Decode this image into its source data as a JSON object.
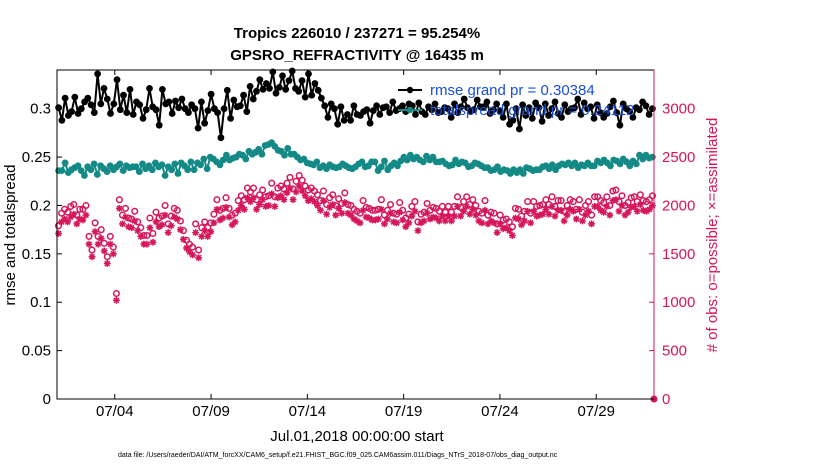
{
  "chart_data": {
    "type": "line",
    "title": "Tropics 226010 / 237271 = 95.254%",
    "subtitle": "GPSRO_REFRACTIVITY @ 16435 m",
    "xlabel": "Jul.01,2018 00:00:00 start",
    "ylabel_left": "rmse and totalspread",
    "ylabel_right": "# of obs: o=possible; ×=assimilated",
    "x_tick_labels": [
      "07/04",
      "07/09",
      "07/14",
      "07/19",
      "07/24",
      "07/29"
    ],
    "x_tick_days": [
      4,
      9,
      14,
      19,
      24,
      29
    ],
    "xlim": [
      1,
      32
    ],
    "ylim_left": [
      0,
      0.34
    ],
    "ylim_right": [
      0,
      3400
    ],
    "y_ticks_left": [
      "0",
      "0.05",
      "0.1",
      "0.15",
      "0.2",
      "0.25",
      "0.3"
    ],
    "y_ticks_right": [
      "0",
      "500",
      "1000",
      "1500",
      "2000",
      "2500",
      "3000"
    ],
    "legend": [
      "rmse grand pr = 0.30384",
      "totalspread grand pr = 0.24112"
    ],
    "colors": {
      "rmse": "#000000",
      "spread": "#138a86",
      "obs": "#d6165a",
      "legend_text": "#1a4fd6"
    },
    "series": [
      {
        "name": "rmse",
        "axis": "left",
        "marker": "dot",
        "values": [
          0.301,
          0.288,
          0.311,
          0.293,
          0.297,
          0.312,
          0.295,
          0.3,
          0.307,
          0.311,
          0.304,
          0.296,
          0.336,
          0.305,
          0.321,
          0.31,
          0.295,
          0.305,
          0.33,
          0.299,
          0.314,
          0.296,
          0.32,
          0.294,
          0.307,
          0.304,
          0.29,
          0.299,
          0.321,
          0.302,
          0.299,
          0.283,
          0.32,
          0.305,
          0.307,
          0.295,
          0.308,
          0.301,
          0.31,
          0.3,
          0.296,
          0.304,
          0.3,
          0.28,
          0.307,
          0.285,
          0.298,
          0.315,
          0.3,
          0.296,
          0.27,
          0.3,
          0.319,
          0.29,
          0.309,
          0.302,
          0.303,
          0.314,
          0.297,
          0.323,
          0.31,
          0.318,
          0.33,
          0.32,
          0.326,
          0.321,
          0.338,
          0.316,
          0.322,
          0.334,
          0.32,
          0.329,
          0.339,
          0.321,
          0.318,
          0.329,
          0.312,
          0.336,
          0.314,
          0.326,
          0.319,
          0.311,
          0.303,
          0.291,
          0.305,
          0.3,
          0.284,
          0.302,
          0.288,
          0.294,
          0.288,
          0.303,
          0.294,
          0.293,
          0.297,
          0.299,
          0.285,
          0.298,
          0.303,
          0.294,
          0.301,
          0.302,
          0.296,
          0.307,
          0.298,
          0.3,
          0.303,
          0.297,
          0.305,
          0.303,
          0.294,
          0.306,
          0.297,
          0.294,
          0.302,
          0.299,
          0.305,
          0.296,
          0.297,
          0.301,
          0.3,
          0.291,
          0.305,
          0.296,
          0.302,
          0.31,
          0.301,
          0.297,
          0.299,
          0.309,
          0.302,
          0.302,
          0.307,
          0.295,
          0.299,
          0.305,
          0.298,
          0.291,
          0.305,
          0.284,
          0.288,
          0.3,
          0.279,
          0.304,
          0.293,
          0.301,
          0.29,
          0.306,
          0.301,
          0.287,
          0.305,
          0.293,
          0.3,
          0.307,
          0.295,
          0.291,
          0.304,
          0.297,
          0.3,
          0.301,
          0.31,
          0.294,
          0.306,
          0.3,
          0.302,
          0.29,
          0.304,
          0.296,
          0.291,
          0.295,
          0.302,
          0.308,
          0.296,
          0.283,
          0.305,
          0.3,
          0.297,
          0.291,
          0.301,
          0.299,
          0.307,
          0.303,
          0.294,
          0.3
        ]
      },
      {
        "name": "totalspread",
        "axis": "left",
        "marker": "dot",
        "values": [
          0.236,
          0.236,
          0.244,
          0.234,
          0.237,
          0.239,
          0.241,
          0.236,
          0.231,
          0.24,
          0.237,
          0.243,
          0.232,
          0.241,
          0.238,
          0.235,
          0.241,
          0.237,
          0.24,
          0.243,
          0.236,
          0.241,
          0.239,
          0.24,
          0.24,
          0.235,
          0.243,
          0.238,
          0.241,
          0.237,
          0.244,
          0.24,
          0.242,
          0.231,
          0.24,
          0.237,
          0.243,
          0.233,
          0.244,
          0.241,
          0.237,
          0.245,
          0.237,
          0.244,
          0.242,
          0.248,
          0.238,
          0.25,
          0.248,
          0.245,
          0.242,
          0.247,
          0.252,
          0.247,
          0.249,
          0.25,
          0.253,
          0.252,
          0.248,
          0.256,
          0.253,
          0.255,
          0.258,
          0.253,
          0.262,
          0.263,
          0.265,
          0.261,
          0.257,
          0.256,
          0.252,
          0.259,
          0.253,
          0.253,
          0.25,
          0.247,
          0.248,
          0.244,
          0.243,
          0.242,
          0.245,
          0.239,
          0.241,
          0.238,
          0.242,
          0.24,
          0.239,
          0.24,
          0.243,
          0.241,
          0.239,
          0.238,
          0.24,
          0.243,
          0.245,
          0.24,
          0.241,
          0.245,
          0.245,
          0.236,
          0.24,
          0.246,
          0.237,
          0.241,
          0.244,
          0.241,
          0.246,
          0.25,
          0.247,
          0.252,
          0.248,
          0.25,
          0.247,
          0.245,
          0.251,
          0.247,
          0.25,
          0.245,
          0.245,
          0.246,
          0.243,
          0.241,
          0.242,
          0.247,
          0.243,
          0.245,
          0.244,
          0.24,
          0.241,
          0.244,
          0.243,
          0.241,
          0.239,
          0.239,
          0.236,
          0.237,
          0.24,
          0.235,
          0.237,
          0.236,
          0.233,
          0.237,
          0.234,
          0.237,
          0.233,
          0.239,
          0.238,
          0.236,
          0.237,
          0.237,
          0.24,
          0.241,
          0.238,
          0.242,
          0.237,
          0.241,
          0.243,
          0.242,
          0.244,
          0.241,
          0.244,
          0.239,
          0.242,
          0.241,
          0.244,
          0.241,
          0.241,
          0.246,
          0.244,
          0.247,
          0.244,
          0.241,
          0.247,
          0.246,
          0.243,
          0.248,
          0.245,
          0.241,
          0.246,
          0.243,
          0.252,
          0.248,
          0.252,
          0.249,
          0.25
        ]
      },
      {
        "name": "possible",
        "axis": "right",
        "marker": "circle",
        "values": [
          1790,
          1920,
          1960,
          1930,
          1990,
          2010,
          1900,
          1960,
          1960,
          2000,
          1680,
          1540,
          1820,
          1680,
          1750,
          1610,
          1470,
          1680,
          1570,
          1090,
          2060,
          1900,
          1970,
          1870,
          1860,
          1940,
          1830,
          1770,
          1690,
          1690,
          1870,
          1710,
          1930,
          1870,
          1890,
          2000,
          1810,
          1890,
          1970,
          1950,
          1840,
          1740,
          1640,
          1600,
          1570,
          1810,
          1540,
          1770,
          1830,
          1770,
          1820,
          1910,
          2060,
          1950,
          1970,
          2080,
          1970,
          1900,
          1920,
          2050,
          2100,
          2060,
          2180,
          2140,
          2180,
          2060,
          2110,
          2160,
          2090,
          2100,
          2230,
          2090,
          2180,
          2200,
          2170,
          2230,
          2290,
          2170,
          2250,
          2310,
          2260,
          2200,
          2160,
          2180,
          2150,
          2110,
          2050,
          2150,
          2010,
          2080,
          2110,
          2000,
          2070,
          2020,
          2130,
          2010,
          2000,
          1960,
          1940,
          1920,
          2050,
          1980,
          1970,
          1950,
          1950,
          1960,
          2060,
          1900,
          1950,
          2010,
          1920,
          1910,
          2030,
          1950,
          1870,
          1910,
          1990,
          2040,
          1830,
          1910,
          1930,
          2020,
          1950,
          1980,
          1970,
          1940,
          1990,
          1930,
          1990,
          1930,
          1990,
          2090,
          1980,
          2040,
          2090,
          2010,
          2060,
          2000,
          1940,
          1920,
          2050,
          1900,
          1930,
          1920,
          1810,
          1900,
          1850,
          1860,
          1830,
          1780,
          1970,
          1960,
          1890,
          1940,
          2040,
          1920,
          2040,
          1990,
          2000,
          2010,
          2060,
          2010,
          2090,
          1990,
          2050,
          2050,
          1940,
          2000,
          2060,
          2040,
          1960,
          2060,
          1930,
          2000,
          2040,
          1900,
          2090,
          2090,
          2050,
          2030,
          2090,
          2000,
          2150,
          2160,
          2040,
          2100,
          2000,
          2030,
          2080,
          2090,
          2040,
          2110,
          2050,
          2040,
          2060,
          2100
        ]
      },
      {
        "name": "assimilated",
        "axis": "right",
        "marker": "asterisk",
        "values": [
          1710,
          1830,
          1860,
          1830,
          1880,
          1910,
          1810,
          1860,
          1850,
          1900,
          1600,
          1470,
          1730,
          1600,
          1660,
          1530,
          1400,
          1600,
          1500,
          1020,
          1970,
          1810,
          1880,
          1780,
          1770,
          1840,
          1740,
          1680,
          1600,
          1600,
          1770,
          1620,
          1830,
          1780,
          1800,
          1900,
          1720,
          1790,
          1880,
          1860,
          1750,
          1650,
          1560,
          1520,
          1490,
          1720,
          1460,
          1680,
          1740,
          1680,
          1730,
          1820,
          1960,
          1850,
          1870,
          1980,
          1880,
          1800,
          1830,
          1950,
          2000,
          1960,
          2080,
          2040,
          2080,
          1960,
          2010,
          2060,
          1990,
          2000,
          2120,
          1990,
          2080,
          2100,
          2060,
          2130,
          2180,
          2060,
          2140,
          2200,
          2150,
          2100,
          2050,
          2070,
          2040,
          2000,
          1950,
          2050,
          1910,
          1980,
          2010,
          1900,
          1970,
          1920,
          2030,
          1920,
          1900,
          1860,
          1840,
          1820,
          1950,
          1880,
          1870,
          1850,
          1850,
          1860,
          1960,
          1810,
          1860,
          1920,
          1830,
          1820,
          1930,
          1850,
          1780,
          1820,
          1890,
          1940,
          1740,
          1820,
          1840,
          1920,
          1860,
          1880,
          1870,
          1840,
          1890,
          1840,
          1890,
          1840,
          1890,
          1990,
          1890,
          1940,
          1990,
          1910,
          1960,
          1900,
          1840,
          1820,
          1950,
          1810,
          1840,
          1820,
          1720,
          1810,
          1760,
          1770,
          1740,
          1690,
          1870,
          1860,
          1800,
          1840,
          1940,
          1820,
          1940,
          1890,
          1900,
          1910,
          1960,
          1910,
          1990,
          1890,
          1950,
          1950,
          1840,
          1900,
          1960,
          1940,
          1860,
          1960,
          1840,
          1900,
          1940,
          1810,
          1990,
          1990,
          1950,
          1930,
          1990,
          1900,
          2050,
          2060,
          1940,
          2000,
          1900,
          1930,
          1980,
          1990,
          1940,
          2010,
          1950,
          1940,
          1960,
          2000
        ]
      }
    ]
  },
  "footer": "data file: /Users/raeder/DAI/ATM_forcXX/CAM6_setup/f.e21.FHIST_BGC.f09_025.CAM6assim.011/Diags_NTrS_2018-07/obs_diag_output.nc"
}
